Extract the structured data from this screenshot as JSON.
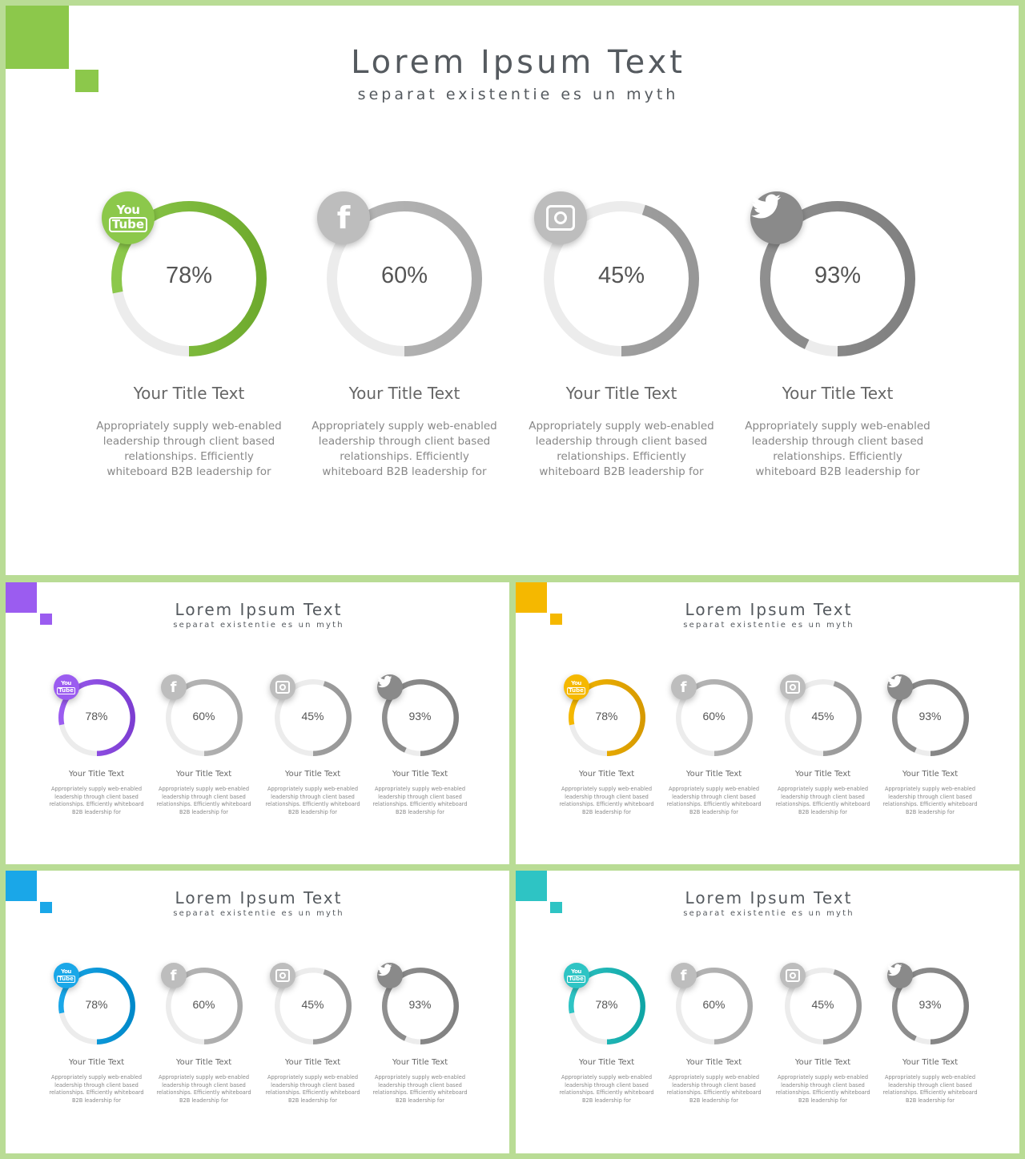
{
  "slides": [
    {
      "accent": "#8cc84b",
      "title": "Lorem Ipsum Text",
      "subtitle": "separat existentie es un myth",
      "items": [
        {
          "icon": "youtube-icon",
          "percent": 78,
          "label": "78%",
          "title": "Your Title Text",
          "desc": "Appropriately supply web-enabled leadership through client based relationships. Efficiently whiteboard B2B leadership for",
          "highlight": true
        },
        {
          "icon": "facebook-icon",
          "percent": 60,
          "label": "60%",
          "title": "Your Title Text",
          "desc": "Appropriately supply web-enabled leadership through client based relationships. Efficiently whiteboard B2B leadership for",
          "highlight": false
        },
        {
          "icon": "instagram-icon",
          "percent": 45,
          "label": "45%",
          "title": "Your Title Text",
          "desc": "Appropriately supply web-enabled leadership through client based relationships. Efficiently whiteboard B2B leadership for",
          "highlight": false
        },
        {
          "icon": "twitter-icon",
          "percent": 93,
          "label": "93%",
          "title": "Your Title Text",
          "desc": "Appropriately supply web-enabled leadership through client based relationships. Efficiently whiteboard B2B leadership for",
          "highlight": false
        }
      ]
    },
    {
      "accent": "#9b5cf0",
      "title": "Lorem Ipsum Text",
      "subtitle": "separat existentie es un myth",
      "items": [
        {
          "icon": "youtube-icon",
          "percent": 78,
          "label": "78%",
          "title": "Your Title Text",
          "desc": "Appropriately supply web-enabled leadership through client based relationships. Efficiently whiteboard B2B leadership for",
          "highlight": true
        },
        {
          "icon": "facebook-icon",
          "percent": 60,
          "label": "60%",
          "title": "Your Title Text",
          "desc": "Appropriately supply web-enabled leadership through client based relationships. Efficiently whiteboard B2B leadership for",
          "highlight": false
        },
        {
          "icon": "instagram-icon",
          "percent": 45,
          "label": "45%",
          "title": "Your Title Text",
          "desc": "Appropriately supply web-enabled leadership through client based relationships. Efficiently whiteboard B2B leadership for",
          "highlight": false
        },
        {
          "icon": "twitter-icon",
          "percent": 93,
          "label": "93%",
          "title": "Your Title Text",
          "desc": "Appropriately supply web-enabled leadership through client based relationships. Efficiently whiteboard B2B leadership for",
          "highlight": false
        }
      ]
    },
    {
      "accent": "#f5b800",
      "title": "Lorem Ipsum Text",
      "subtitle": "separat existentie es un myth",
      "items": [
        {
          "icon": "youtube-icon",
          "percent": 78,
          "label": "78%",
          "title": "Your Title Text",
          "desc": "Appropriately supply web-enabled leadership through client based relationships. Efficiently whiteboard B2B leadership for",
          "highlight": true
        },
        {
          "icon": "facebook-icon",
          "percent": 60,
          "label": "60%",
          "title": "Your Title Text",
          "desc": "Appropriately supply web-enabled leadership through client based relationships. Efficiently whiteboard B2B leadership for",
          "highlight": false
        },
        {
          "icon": "instagram-icon",
          "percent": 45,
          "label": "45%",
          "title": "Your Title Text",
          "desc": "Appropriately supply web-enabled leadership through client based relationships. Efficiently whiteboard B2B leadership for",
          "highlight": false
        },
        {
          "icon": "twitter-icon",
          "percent": 93,
          "label": "93%",
          "title": "Your Title Text",
          "desc": "Appropriately supply web-enabled leadership through client based relationships. Efficiently whiteboard B2B leadership for",
          "highlight": false
        }
      ]
    },
    {
      "accent": "#1aa7e8",
      "title": "Lorem Ipsum Text",
      "subtitle": "separat existentie es un myth",
      "items": [
        {
          "icon": "youtube-icon",
          "percent": 78,
          "label": "78%",
          "title": "Your Title Text",
          "desc": "Appropriately supply web-enabled leadership through client based relationships. Efficiently whiteboard B2B leadership for",
          "highlight": true
        },
        {
          "icon": "facebook-icon",
          "percent": 60,
          "label": "60%",
          "title": "Your Title Text",
          "desc": "Appropriately supply web-enabled leadership through client based relationships. Efficiently whiteboard B2B leadership for",
          "highlight": false
        },
        {
          "icon": "instagram-icon",
          "percent": 45,
          "label": "45%",
          "title": "Your Title Text",
          "desc": "Appropriately supply web-enabled leadership through client based relationships. Efficiently whiteboard B2B leadership for",
          "highlight": false
        },
        {
          "icon": "twitter-icon",
          "percent": 93,
          "label": "93%",
          "title": "Your Title Text",
          "desc": "Appropriately supply web-enabled leadership through client based relationships. Efficiently whiteboard B2B leadership for",
          "highlight": false
        }
      ]
    },
    {
      "accent": "#2ec4c4",
      "title": "Lorem Ipsum Text",
      "subtitle": "separat existentie es un myth",
      "items": [
        {
          "icon": "youtube-icon",
          "percent": 78,
          "label": "78%",
          "title": "Your Title Text",
          "desc": "Appropriately supply web-enabled leadership through client based relationships. Efficiently whiteboard B2B leadership for",
          "highlight": true
        },
        {
          "icon": "facebook-icon",
          "percent": 60,
          "label": "60%",
          "title": "Your Title Text",
          "desc": "Appropriately supply web-enabled leadership through client based relationships. Efficiently whiteboard B2B leadership for",
          "highlight": false
        },
        {
          "icon": "instagram-icon",
          "percent": 45,
          "label": "45%",
          "title": "Your Title Text",
          "desc": "Appropriately supply web-enabled leadership through client based relationships. Efficiently whiteboard B2B leadership for",
          "highlight": false
        },
        {
          "icon": "twitter-icon",
          "percent": 93,
          "label": "93%",
          "title": "Your Title Text",
          "desc": "Appropriately supply web-enabled leadership through client based relationships. Efficiently whiteboard B2B leadership for",
          "highlight": false
        }
      ]
    }
  ],
  "colors": {
    "frame": "#b9dc95",
    "track": "#ececec",
    "gray_ring_1": "#b8b8b8",
    "gray_ring_2": "#a6a6a6",
    "gray_ring_3": "#8f8f8f",
    "gray_badge": "#bdbdbd",
    "gray_badge_dark": "#8a8a8a"
  }
}
